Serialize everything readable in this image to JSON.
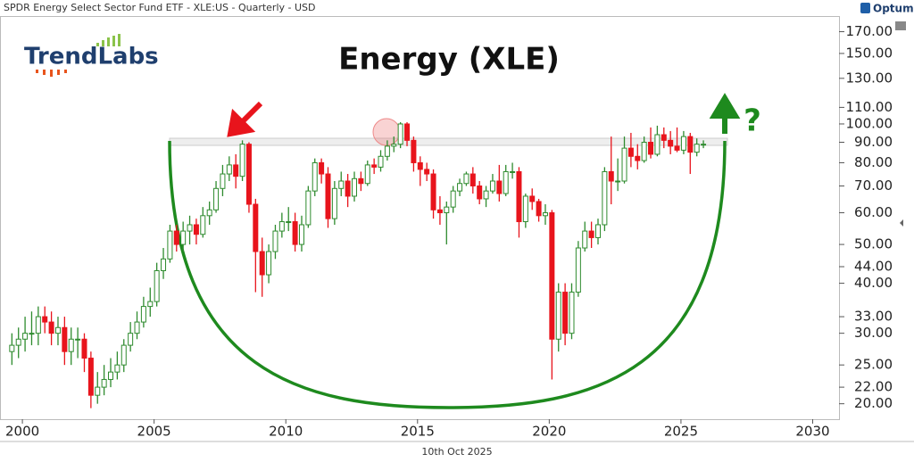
{
  "chart_data": {
    "type": "candlestick",
    "header": "SPDR Energy Select Sector Fund ETF - XLE:US - Quarterly - USD",
    "title": "Energy (XLE)",
    "brand": "Optuma",
    "logo": "TrendLabs",
    "annotation": "?",
    "date": "10th Oct 2025",
    "log_scale": true,
    "up_color": "#2e8b2e",
    "down_color": "#e8141c",
    "ylim": [
      18.3,
      186
    ],
    "xlim": [
      1999.15,
      2031.0
    ],
    "yticks": [
      {
        "value": 20,
        "label": "20.00"
      },
      {
        "value": 22,
        "label": "22.00"
      },
      {
        "value": 25,
        "label": "25.00"
      },
      {
        "value": 30,
        "label": "30.00"
      },
      {
        "value": 33,
        "label": "33.00"
      },
      {
        "value": 40,
        "label": "40.00"
      },
      {
        "value": 44,
        "label": "44.00"
      },
      {
        "value": 50,
        "label": "50.00"
      },
      {
        "value": 60,
        "label": "60.00"
      },
      {
        "value": 70,
        "label": "70.00"
      },
      {
        "value": 80,
        "label": "80.00"
      },
      {
        "value": 90,
        "label": "90.00"
      },
      {
        "value": 100,
        "label": "100.00"
      },
      {
        "value": 110,
        "label": "110.00"
      },
      {
        "value": 130,
        "label": "130.00"
      },
      {
        "value": 150,
        "label": "150.00"
      },
      {
        "value": 170,
        "label": "170.00"
      }
    ],
    "xticks": [
      2000,
      2005,
      2010,
      2015,
      2020,
      2025,
      2030
    ],
    "x": [
      1999.5,
      1999.75,
      2000,
      2000.25,
      2000.5,
      2000.75,
      2001,
      2001.25,
      2001.5,
      2001.75,
      2002,
      2002.25,
      2002.5,
      2002.75,
      2003,
      2003.25,
      2003.5,
      2003.75,
      2004,
      2004.25,
      2004.5,
      2004.75,
      2005,
      2005.25,
      2005.5,
      2005.75,
      2006,
      2006.25,
      2006.5,
      2006.75,
      2007,
      2007.25,
      2007.5,
      2007.75,
      2008,
      2008.25,
      2008.5,
      2008.75,
      2009,
      2009.25,
      2009.5,
      2009.75,
      2010,
      2010.25,
      2010.5,
      2010.75,
      2011,
      2011.25,
      2011.5,
      2011.75,
      2012,
      2012.25,
      2012.5,
      2012.75,
      2013,
      2013.25,
      2013.5,
      2013.75,
      2014,
      2014.25,
      2014.5,
      2014.75,
      2015,
      2015.25,
      2015.5,
      2015.75,
      2016,
      2016.25,
      2016.5,
      2016.75,
      2017,
      2017.25,
      2017.5,
      2017.75,
      2018,
      2018.25,
      2018.5,
      2018.75,
      2019,
      2019.25,
      2019.5,
      2019.75,
      2020,
      2020.25,
      2020.5,
      2020.75,
      2021,
      2021.25,
      2021.5,
      2021.75,
      2022,
      2022.25,
      2022.5,
      2022.75,
      2023,
      2023.25,
      2023.5,
      2023.75,
      2024,
      2024.25,
      2024.5,
      2024.75,
      2025,
      2025.25,
      2025.5,
      2025.75
    ],
    "open": [
      27,
      28,
      29,
      30,
      30,
      33,
      32,
      30,
      31,
      27,
      29,
      29,
      26,
      21,
      22,
      23,
      24,
      25,
      28,
      30,
      32,
      35,
      36,
      43,
      46,
      54,
      50,
      54,
      56,
      53,
      59,
      61,
      69,
      75,
      79,
      74,
      89,
      63,
      48,
      42,
      48,
      54,
      57,
      57,
      50,
      56,
      68,
      80,
      75,
      58,
      69,
      72,
      66,
      73,
      71,
      79,
      78,
      83,
      88,
      89,
      100,
      91,
      80,
      77,
      75,
      61,
      60,
      62,
      68,
      71,
      75,
      70,
      65,
      68,
      72,
      67,
      76,
      76,
      57,
      66,
      64,
      59,
      60,
      29,
      38,
      30,
      38,
      49,
      54,
      52,
      56,
      76,
      72,
      72,
      87,
      83,
      81,
      90,
      84,
      94,
      91,
      88,
      86,
      93,
      85,
      89
    ],
    "high": [
      30,
      31,
      33,
      34,
      35,
      35,
      34,
      33,
      33,
      31,
      31,
      30,
      27,
      24,
      25,
      26,
      27,
      29,
      32,
      34,
      37,
      39,
      45,
      49,
      56,
      56,
      57,
      59,
      58,
      62,
      64,
      72,
      79,
      83,
      84,
      91,
      90,
      65,
      52,
      50,
      56,
      60,
      62,
      60,
      59,
      70,
      82,
      82,
      78,
      72,
      76,
      75,
      76,
      76,
      81,
      82,
      86,
      91,
      93,
      101,
      101,
      93,
      83,
      80,
      77,
      66,
      64,
      70,
      73,
      76,
      78,
      72,
      70,
      75,
      79,
      79,
      80,
      78,
      67,
      69,
      65,
      63,
      61,
      40,
      40,
      40,
      51,
      57,
      57,
      58,
      78,
      93,
      82,
      93,
      95,
      89,
      93,
      98,
      99,
      98,
      96,
      98,
      96,
      95,
      92,
      91
    ],
    "low": [
      25,
      26,
      27,
      28,
      28,
      30,
      28,
      28,
      25,
      25,
      26,
      24,
      19.5,
      20,
      21,
      22,
      23,
      24,
      27,
      29,
      31,
      33,
      35,
      41,
      45,
      48,
      48,
      50,
      50,
      52,
      56,
      60,
      66,
      72,
      69,
      72,
      60,
      38,
      37,
      40,
      46,
      52,
      54,
      48,
      48,
      55,
      66,
      71,
      55,
      56,
      66,
      62,
      64,
      68,
      70,
      75,
      76,
      81,
      85,
      87,
      88,
      76,
      70,
      72,
      58,
      56,
      50,
      60,
      66,
      70,
      67,
      63,
      62,
      67,
      64,
      66,
      73,
      52,
      55,
      61,
      57,
      56,
      23,
      27,
      28,
      29,
      37,
      48,
      49,
      50,
      54,
      63,
      68,
      71,
      78,
      77,
      80,
      82,
      83,
      87,
      84,
      85,
      84,
      75,
      83,
      87
    ],
    "close": [
      28,
      29,
      30,
      30,
      33,
      32,
      30,
      31,
      27,
      29,
      29,
      26,
      21,
      22,
      23,
      24,
      25,
      28,
      30,
      32,
      35,
      36,
      43,
      46,
      54,
      50,
      54,
      56,
      53,
      59,
      61,
      69,
      75,
      79,
      74,
      89,
      63,
      48,
      42,
      48,
      54,
      57,
      57,
      50,
      56,
      68,
      80,
      75,
      58,
      69,
      72,
      66,
      73,
      71,
      79,
      78,
      83,
      88,
      89,
      100,
      91,
      80,
      77,
      75,
      61,
      60,
      62,
      68,
      71,
      75,
      70,
      65,
      68,
      72,
      67,
      76,
      76,
      57,
      66,
      64,
      59,
      60,
      29,
      38,
      30,
      38,
      49,
      54,
      52,
      56,
      76,
      72,
      72,
      87,
      83,
      81,
      90,
      84,
      94,
      91,
      88,
      86,
      93,
      85,
      89,
      89
    ]
  }
}
